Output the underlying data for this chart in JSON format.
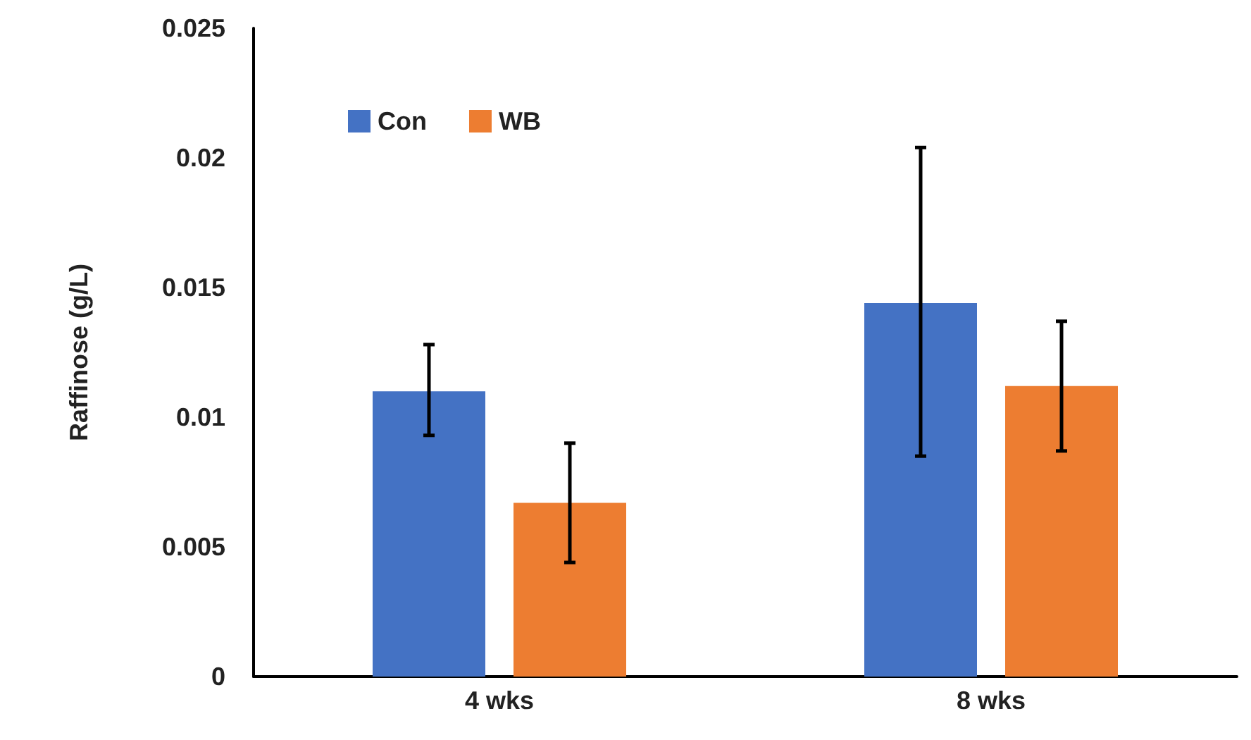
{
  "chart_data": {
    "type": "bar",
    "ylabel": "Raffinose (g/L)",
    "categories": [
      "4 wks",
      "8 wks"
    ],
    "series": [
      {
        "name": "Con",
        "color": "#4472c4",
        "values": [
          0.011,
          0.0144
        ],
        "errors": [
          [
            0.0093,
            0.0128
          ],
          [
            0.0085,
            0.0204
          ]
        ]
      },
      {
        "name": "WB",
        "color": "#ed7d31",
        "values": [
          0.0067,
          0.0112
        ],
        "errors": [
          [
            0.0044,
            0.009
          ],
          [
            0.0087,
            0.0137
          ]
        ]
      }
    ],
    "ylim": [
      0,
      0.025
    ],
    "yticks": [
      0,
      0.005,
      0.01,
      0.015,
      0.02,
      0.025
    ],
    "grid": false,
    "legend": "top left"
  }
}
